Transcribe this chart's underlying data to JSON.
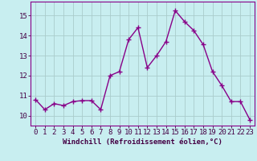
{
  "x": [
    0,
    1,
    2,
    3,
    4,
    5,
    6,
    7,
    8,
    9,
    10,
    11,
    12,
    13,
    14,
    15,
    16,
    17,
    18,
    19,
    20,
    21,
    22,
    23
  ],
  "y": [
    10.8,
    10.3,
    10.6,
    10.5,
    10.7,
    10.75,
    10.75,
    10.3,
    12.0,
    12.2,
    13.8,
    14.4,
    12.4,
    13.0,
    13.7,
    15.25,
    14.7,
    14.25,
    13.55,
    12.2,
    11.5,
    10.7,
    10.7,
    9.8
  ],
  "line_color": "#880088",
  "marker": "+",
  "markersize": 4,
  "markeredgewidth": 1.0,
  "linewidth": 1.0,
  "background_color": "#c8eef0",
  "grid_color": "#aacccc",
  "xlabel": "Windchill (Refroidissement éolien,°C)",
  "xlabel_fontsize": 6.5,
  "ylabel_ticks": [
    10,
    11,
    12,
    13,
    14,
    15
  ],
  "ylim": [
    9.5,
    15.7
  ],
  "xlim": [
    -0.5,
    23.5
  ],
  "tick_fontsize": 6.5,
  "spine_color": "#880088"
}
